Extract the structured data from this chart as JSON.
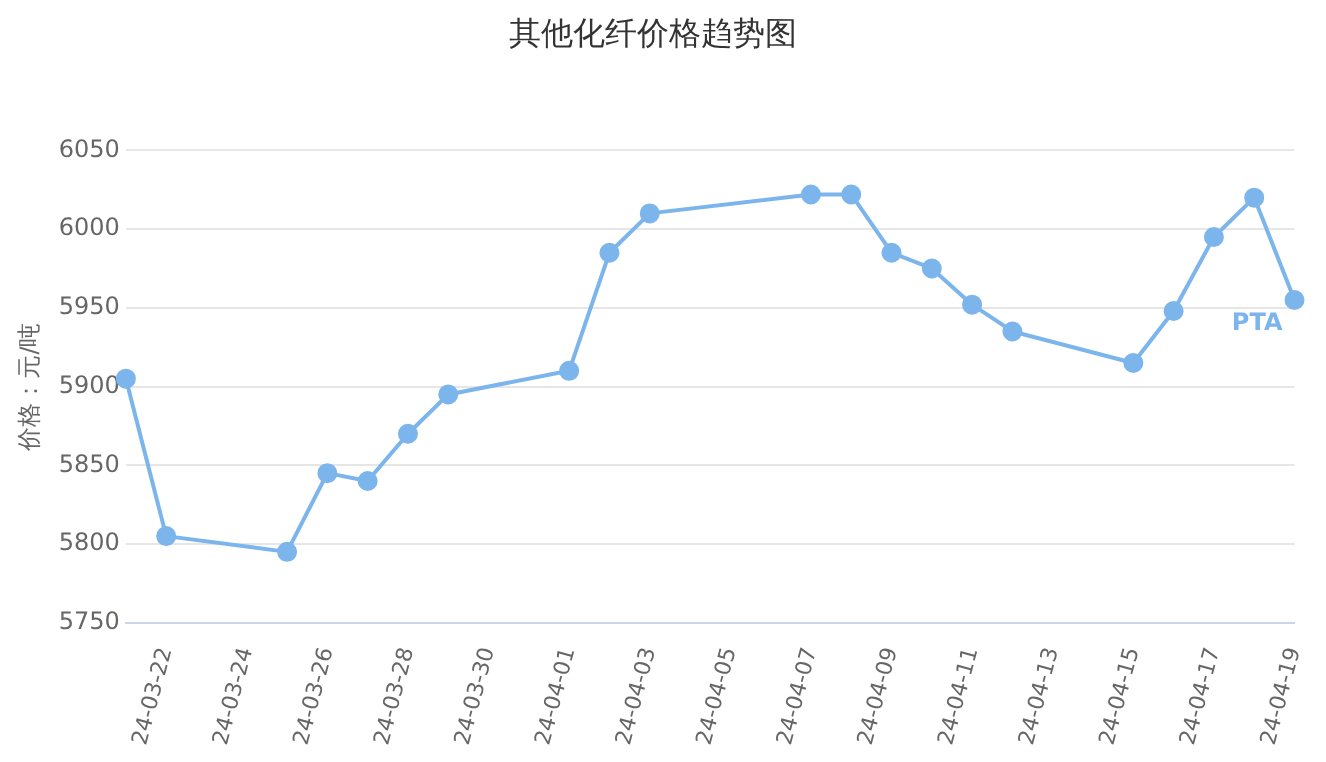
{
  "chart_data": {
    "type": "line",
    "title": "其他化纤价格趋势图",
    "ylabel": "价格：元/吨",
    "x": [
      "--03-21",
      "--03-22",
      "--03-25",
      "--03-26",
      "--03-27",
      "--03-28",
      "--03-29",
      "--04-01",
      "--04-02",
      "--04-03",
      "--04-07",
      "--04-08",
      "--04-09",
      "--04-10",
      "--04-11",
      "--04-12",
      "--04-15",
      "--04-16",
      "--04-17",
      "--04-18",
      "--04-19"
    ],
    "series": [
      {
        "name": "PTA",
        "color": "#7cb5ec",
        "values": [
          5905,
          5805,
          5795,
          5845,
          5840,
          5870,
          5895,
          5910,
          5985,
          6010,
          6022,
          6022,
          5985,
          5975,
          5952,
          5935,
          5915,
          5948,
          5995,
          6020,
          5955
        ]
      }
    ],
    "xlim": [
      "--03-21",
      "--04-19"
    ],
    "xticks": [
      {
        "value": "--03-22",
        "label": "24-03-22"
      },
      {
        "value": "--03-24",
        "label": "24-03-24"
      },
      {
        "value": "--03-26",
        "label": "24-03-26"
      },
      {
        "value": "--03-28",
        "label": "24-03-28"
      },
      {
        "value": "--03-30",
        "label": "24-03-30"
      },
      {
        "value": "--04-01",
        "label": "24-04-01"
      },
      {
        "value": "--04-03",
        "label": "24-04-03"
      },
      {
        "value": "--04-05",
        "label": "24-04-05"
      },
      {
        "value": "--04-07",
        "label": "24-04-07"
      },
      {
        "value": "--04-09",
        "label": "24-04-09"
      },
      {
        "value": "--04-11",
        "label": "24-04-11"
      },
      {
        "value": "--04-13",
        "label": "24-04-13"
      },
      {
        "value": "--04-15",
        "label": "24-04-15"
      },
      {
        "value": "--04-17",
        "label": "24-04-17"
      },
      {
        "value": "--04-19",
        "label": "24-04-19"
      }
    ],
    "ylim": [
      5750,
      6050
    ],
    "yticks": [
      5750,
      5800,
      5850,
      5900,
      5950,
      6000,
      6050
    ],
    "grid": "y",
    "legend": false,
    "marker": "circle",
    "line_style": "solid"
  }
}
